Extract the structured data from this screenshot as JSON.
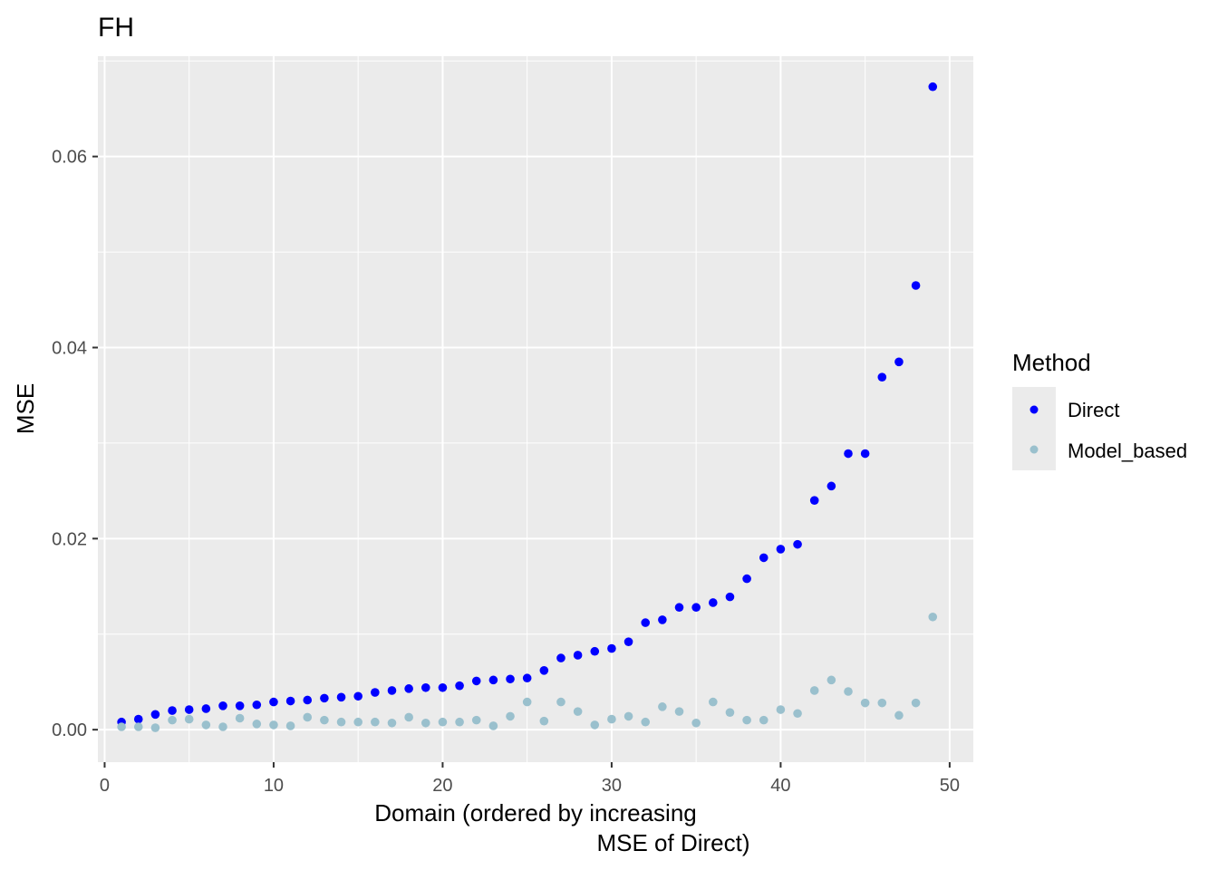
{
  "chart_data": {
    "type": "scatter",
    "title": "FH",
    "xlabel_line1": "Domain (ordered by increasing",
    "xlabel_line2": "MSE of Direct)",
    "ylabel": "MSE",
    "xlim": [
      -0.4,
      51.4
    ],
    "ylim": [
      -0.0034,
      0.0705
    ],
    "x_ticks": [
      0,
      10,
      20,
      30,
      40,
      50
    ],
    "x_tick_labels": [
      "0",
      "10",
      "20",
      "30",
      "40",
      "50"
    ],
    "y_ticks": [
      0.0,
      0.02,
      0.04,
      0.06
    ],
    "y_tick_labels": [
      "0.00",
      "0.02",
      "0.04",
      "0.06"
    ],
    "grid": true,
    "legend": {
      "title": "Method",
      "placement": "right"
    },
    "x": [
      1,
      2,
      3,
      4,
      5,
      6,
      7,
      8,
      9,
      10,
      11,
      12,
      13,
      14,
      15,
      16,
      17,
      18,
      19,
      20,
      21,
      22,
      23,
      24,
      25,
      26,
      27,
      28,
      29,
      30,
      31,
      32,
      33,
      34,
      35,
      36,
      37,
      38,
      39,
      40,
      41,
      42,
      43,
      44,
      45,
      46,
      47,
      48,
      49
    ],
    "series": [
      {
        "name": "Direct",
        "color": "#0000ff",
        "values": [
          0.0008,
          0.0011,
          0.0016,
          0.002,
          0.0021,
          0.0022,
          0.0025,
          0.0025,
          0.0026,
          0.0029,
          0.003,
          0.0031,
          0.0033,
          0.0034,
          0.0035,
          0.0039,
          0.0041,
          0.0043,
          0.0044,
          0.0044,
          0.0046,
          0.0051,
          0.0052,
          0.0053,
          0.0054,
          0.0062,
          0.0075,
          0.0078,
          0.0082,
          0.0085,
          0.0092,
          0.0112,
          0.0115,
          0.0128,
          0.0128,
          0.0133,
          0.0139,
          0.0158,
          0.018,
          0.0189,
          0.0194,
          0.024,
          0.0255,
          0.0289,
          0.0289,
          0.0369,
          0.0385,
          0.0465,
          0.0673
        ]
      },
      {
        "name": "Model_based",
        "color": "#9ac0cd",
        "values": [
          0.0003,
          0.0003,
          0.0002,
          0.001,
          0.0011,
          0.0005,
          0.0003,
          0.0012,
          0.0006,
          0.0005,
          0.0004,
          0.0013,
          0.001,
          0.0008,
          0.0008,
          0.0008,
          0.0007,
          0.0013,
          0.0007,
          0.0008,
          0.0008,
          0.001,
          0.0004,
          0.0014,
          0.0029,
          0.0009,
          0.0029,
          0.0019,
          0.0005,
          0.0011,
          0.0014,
          0.0008,
          0.0024,
          0.0019,
          0.0007,
          0.0029,
          0.0018,
          0.001,
          0.001,
          0.0021,
          0.0017,
          0.0041,
          0.0052,
          0.004,
          0.0028,
          0.0028,
          0.0015,
          0.0028,
          0.0118
        ]
      }
    ]
  }
}
